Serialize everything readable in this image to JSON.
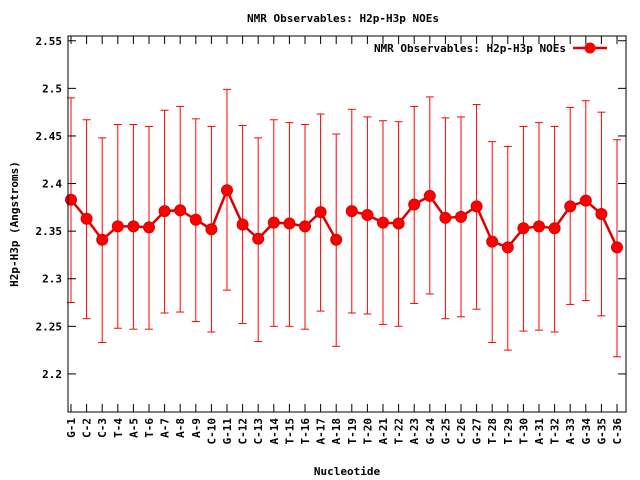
{
  "chart_data": {
    "type": "line",
    "title": "NMR Observables: H2p-H3p NOEs",
    "xlabel": "Nucleotide",
    "ylabel": "H2p-H3p (Angstroms)",
    "ylim": [
      2.16,
      2.555
    ],
    "y_ticks": [
      2.2,
      2.25,
      2.3,
      2.35,
      2.4,
      2.45,
      2.5,
      2.55
    ],
    "y_tick_labels": [
      "2.2",
      "2.25",
      "2.3",
      "2.35",
      "2.4",
      "2.45",
      "2.5",
      "2.55"
    ],
    "legend_position": "top-right",
    "grid": false,
    "color": "#ff0000",
    "line_color": "#dd0000",
    "categories": [
      "G-1",
      "C-2",
      "C-3",
      "T-4",
      "A-5",
      "T-6",
      "A-7",
      "A-8",
      "A-9",
      "C-10",
      "G-11",
      "C-12",
      "C-13",
      "A-14",
      "T-15",
      "T-16",
      "A-17",
      "A-18",
      "T-19",
      "T-20",
      "A-21",
      "T-22",
      "A-23",
      "G-24",
      "G-25",
      "C-26",
      "G-27",
      "T-28",
      "T-29",
      "T-30",
      "A-31",
      "T-32",
      "A-33",
      "G-34",
      "G-35",
      "C-36"
    ],
    "series": [
      {
        "name": "NMR Observables: H2p-H3p NOEs",
        "segments": [
          [
            0,
            17
          ],
          [
            18,
            35
          ]
        ],
        "values": [
          2.383,
          2.363,
          2.341,
          2.355,
          2.355,
          2.354,
          2.371,
          2.372,
          2.362,
          2.352,
          2.393,
          2.357,
          2.342,
          2.359,
          2.358,
          2.355,
          2.37,
          2.341,
          2.371,
          2.367,
          2.359,
          2.358,
          2.378,
          2.387,
          2.364,
          2.365,
          2.376,
          2.339,
          2.333,
          2.353,
          2.355,
          2.353,
          2.376,
          2.382,
          2.368,
          2.333
        ],
        "err_low": [
          2.275,
          2.258,
          2.233,
          2.248,
          2.247,
          2.247,
          2.264,
          2.265,
          2.255,
          2.244,
          2.288,
          2.253,
          2.234,
          2.25,
          2.25,
          2.247,
          2.266,
          2.229,
          2.264,
          2.263,
          2.252,
          2.25,
          2.274,
          2.284,
          2.258,
          2.26,
          2.268,
          2.233,
          2.225,
          2.245,
          2.246,
          2.244,
          2.273,
          2.277,
          2.261,
          2.218
        ],
        "err_high": [
          2.49,
          2.467,
          2.448,
          2.462,
          2.462,
          2.46,
          2.477,
          2.481,
          2.468,
          2.46,
          2.499,
          2.461,
          2.448,
          2.467,
          2.464,
          2.462,
          2.473,
          2.452,
          2.478,
          2.47,
          2.466,
          2.465,
          2.481,
          2.491,
          2.469,
          2.47,
          2.483,
          2.444,
          2.439,
          2.46,
          2.464,
          2.46,
          2.48,
          2.487,
          2.475,
          2.446
        ]
      }
    ]
  }
}
